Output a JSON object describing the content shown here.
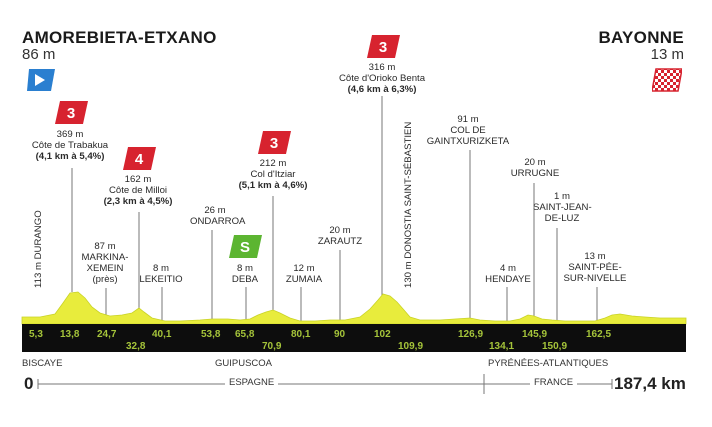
{
  "start": {
    "city": "AMOREBIETA-ETXANO",
    "altitude": "86 m"
  },
  "finish": {
    "city": "BAYONNE",
    "altitude": "13 m"
  },
  "climbs": [
    {
      "category": "3",
      "color": "#d7232f",
      "altitude": "369 m",
      "name": "Côte de Trabakua",
      "detail": "(4,1 km à 5,4%)"
    },
    {
      "category": "4",
      "color": "#d7232f",
      "altitude": "162 m",
      "name": "Côte de Milloi",
      "detail": "(2,3 km à 4,5%)"
    },
    {
      "category": "3",
      "color": "#d7232f",
      "altitude": "212 m",
      "name": "Col d'Itziar",
      "detail": "(5,1 km à 4,6%)"
    },
    {
      "category": "3",
      "color": "#d7232f",
      "altitude": "316 m",
      "name": "Côte d'Orioko Benta",
      "detail": "(4,6 km à 6,3%)"
    }
  ],
  "sprint": {
    "label": "S",
    "color": "#5cb531"
  },
  "places": [
    {
      "id": "durango",
      "text": "113 m DURANGO"
    },
    {
      "id": "markina",
      "alt": "87 m",
      "l1": "MARKINA-",
      "l2": "XEMEIN",
      "l3": "(près)"
    },
    {
      "id": "lekeitio",
      "alt": "8 m",
      "l1": "LEKEITIO"
    },
    {
      "id": "ondarroa",
      "alt": "26 m",
      "l1": "ONDARROA"
    },
    {
      "id": "deba",
      "alt": "8 m",
      "l1": "DEBA"
    },
    {
      "id": "zumaia",
      "alt": "12 m",
      "l1": "ZUMAIA"
    },
    {
      "id": "zarautz",
      "alt": "20 m",
      "l1": "ZARAUTZ"
    },
    {
      "id": "donostia",
      "text": "130 m DONOSTIA SAINT-SÉBASTIEN"
    },
    {
      "id": "gaintxurizketa",
      "alt": "91 m",
      "l1": "COL DE",
      "l2": "GAINTXURIZKETA"
    },
    {
      "id": "hendaye",
      "alt": "4 m",
      "l1": "HENDAYE"
    },
    {
      "id": "urrugne",
      "alt": "20 m",
      "l1": "URRUGNE"
    },
    {
      "id": "saintjean",
      "alt": "1 m",
      "l1": "SAINT-JEAN-",
      "l2": "DE-LUZ"
    },
    {
      "id": "saintpee",
      "alt": "13 m",
      "l1": "SAINT-PÉE-",
      "l2": "SUR-NIVELLE"
    }
  ],
  "km_marks": [
    "5,3",
    "13,8",
    "24,7",
    "32,8",
    "40,1",
    "53,8",
    "65,8",
    "70,9",
    "80,1",
    "90",
    "102",
    "109,9",
    "126,9",
    "134,1",
    "145,9",
    "150,9",
    "162,5"
  ],
  "regions": {
    "biscaye": "BISCAYE",
    "guipuscoa": "GUIPUSCOA",
    "pyrenees": "PYRÉNÉES-ATLANTIQUES",
    "espagne": "ESPAGNE",
    "france": "FRANCE"
  },
  "distance": {
    "start": "0",
    "end": "187,4 km"
  },
  "colors": {
    "profile": "#e8ec3c",
    "profile_dark": "#c9d326",
    "band": "#0d0d0d",
    "km_text": "#a5c43a",
    "start_flag": "#2a7fd0",
    "climb_flag": "#d7232f",
    "sprint_flag": "#5cb531"
  }
}
